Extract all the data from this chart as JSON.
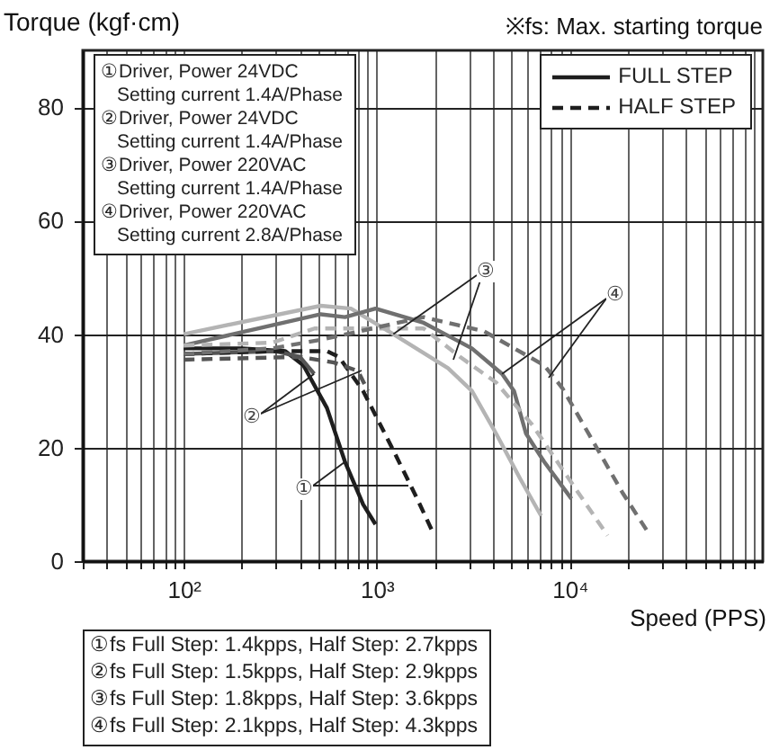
{
  "chart_data": {
    "type": "line",
    "ylabel": "Torque (kgf·cm)",
    "xlabel": "Speed (PPS)",
    "log": "x",
    "grid": true,
    "legend": "top right",
    "xlim": [
      30,
      100000
    ],
    "ylim": [
      0,
      90
    ],
    "yticks": [
      0,
      20,
      40,
      60,
      80
    ],
    "xticks": [
      {
        "value": 30,
        "label": null
      },
      {
        "value": 40,
        "label": null
      },
      {
        "value": 50,
        "label": null
      },
      {
        "value": 60,
        "label": null
      },
      {
        "value": 70,
        "label": null
      },
      {
        "value": 80,
        "label": null
      },
      {
        "value": 90,
        "label": null
      },
      {
        "value": 100,
        "label": "10²"
      },
      {
        "value": 200,
        "label": null
      },
      {
        "value": 300,
        "label": null
      },
      {
        "value": 400,
        "label": null
      },
      {
        "value": 500,
        "label": null
      },
      {
        "value": 600,
        "label": null
      },
      {
        "value": 700,
        "label": null
      },
      {
        "value": 800,
        "label": null
      },
      {
        "value": 900,
        "label": null
      },
      {
        "value": 1000,
        "label": "10³"
      },
      {
        "value": 2000,
        "label": null
      },
      {
        "value": 3000,
        "label": null
      },
      {
        "value": 4000,
        "label": null
      },
      {
        "value": 5000,
        "label": null
      },
      {
        "value": 6000,
        "label": null
      },
      {
        "value": 7000,
        "label": null
      },
      {
        "value": 8000,
        "label": null
      },
      {
        "value": 9000,
        "label": null
      },
      {
        "value": 10000,
        "label": "10⁴"
      },
      {
        "value": 20000,
        "label": null
      },
      {
        "value": 30000,
        "label": null
      },
      {
        "value": 40000,
        "label": null
      },
      {
        "value": 50000,
        "label": null
      },
      {
        "value": 60000,
        "label": null
      },
      {
        "value": 70000,
        "label": null
      },
      {
        "value": 80000,
        "label": null
      },
      {
        "value": 90000,
        "label": null
      }
    ],
    "series": [
      {
        "name": "FULL STEP",
        "color": "#1e1e1e",
        "line_style": "solid",
        "x": [
          100,
          200,
          336,
          417,
          552,
          685,
          850,
          985
        ],
        "values": [
          37.5,
          37.5,
          37,
          34.5,
          27,
          17.5,
          10,
          6.5
        ]
      },
      {
        "name": "HALF STEP",
        "color": "#1e1e1e",
        "line_style": "dashed",
        "x": [
          100,
          300,
          552,
          637,
          850,
          1220,
          1620,
          1990
        ],
        "values": [
          36.5,
          37,
          37,
          36,
          30,
          19.5,
          11,
          4.5
        ]
      },
      {
        "color": "#555555",
        "line_style": "solid",
        "x": [
          100,
          300,
          400,
          474
        ],
        "values": [
          36.5,
          37,
          36,
          33
        ]
      },
      {
        "color": "#555555",
        "line_style": "dashed",
        "x": [
          100,
          400,
          600,
          800,
          900
        ],
        "values": [
          35.5,
          36,
          35,
          33.5,
          30
        ]
      },
      {
        "color": "#b4b4b4",
        "line_style": "solid",
        "x": [
          100,
          513,
          735,
          1220,
          2340,
          3110,
          4150,
          5540,
          7100
        ],
        "values": [
          40,
          45,
          44.5,
          40,
          34,
          30,
          22.5,
          14.5,
          8
        ]
      },
      {
        "color": "#b4b4b4",
        "line_style": "dashed",
        "x": [
          100,
          288,
          476,
          1750,
          2700,
          4150,
          6400,
          10600,
          15700
        ],
        "values": [
          38,
          38.5,
          41,
          41,
          36,
          31.5,
          24,
          13,
          4.5
        ]
      },
      {
        "color": "#707070",
        "line_style": "solid",
        "x": [
          100,
          513,
          685,
          985,
          1750,
          3110,
          4460,
          5140,
          5930,
          7370,
          10200
        ],
        "values": [
          38,
          43.5,
          43,
          44.5,
          42,
          37.5,
          33,
          30,
          22.5,
          17.5,
          11
        ]
      },
      {
        "color": "#707070",
        "line_style": "dashed",
        "x": [
          100,
          288,
          513,
          1750,
          3600,
          7370,
          9150,
          13000,
          18800,
          26100
        ],
        "values": [
          36.5,
          37.5,
          39,
          43,
          40.5,
          34.5,
          30.5,
          21.5,
          12,
          4.5
        ]
      }
    ],
    "annotations": [
      "※fs: Max. starting torque",
      "①Driver, Power 24VDC",
      "Setting current 1.4A/Phase",
      "②Driver, Power 24VDC",
      "Setting current 1.4A/Phase",
      "③Driver, Power 220VAC",
      "Setting current 1.4A/Phase",
      "④Driver, Power 220VAC",
      "Setting current 2.8A/Phase",
      "①fs Full Step: 1.4kpps, Half Step: 2.7kpps",
      "②fs Full Step: 1.5kpps, Half Step: 2.9kpps",
      "③fs Full Step: 1.8kpps, Half Step: 3.6kpps",
      "④fs Full Step: 2.1kpps, Half Step: 4.3kpps",
      {
        "text": "①",
        "x": 685,
        "y": 17.5
      },
      {
        "text": "②",
        "x": 474,
        "y": 33
      },
      {
        "text": "③",
        "x": 1220,
        "y": 40
      },
      {
        "text": "④",
        "x": 4460,
        "y": 33
      }
    ]
  }
}
